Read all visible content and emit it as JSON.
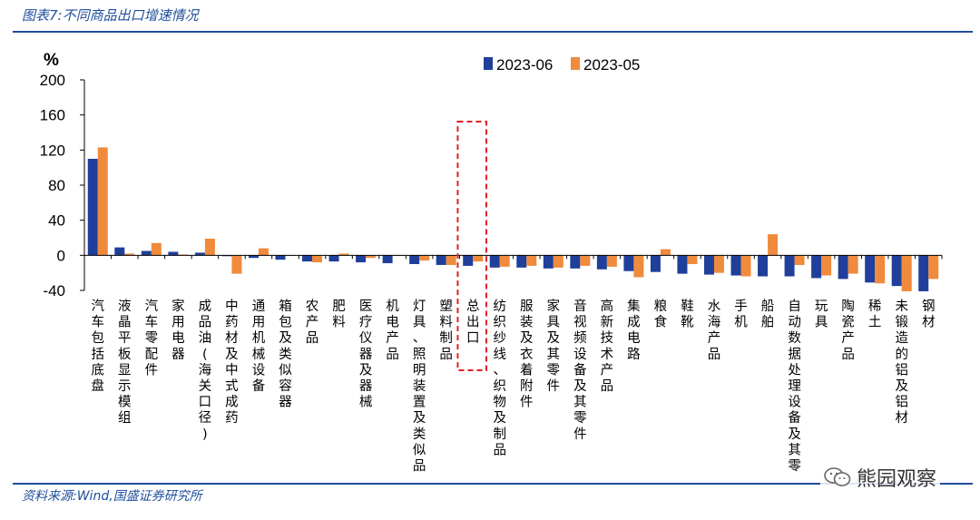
{
  "figure": {
    "title": "图表7:不同商品出口增速情况",
    "source": "资料来源:Wind,国盛证券研究所",
    "watermark": "熊园观察"
  },
  "colors": {
    "series_2023_06": "#1f3f9a",
    "series_2023_05": "#f08a3c",
    "rule": "#1f4e9c",
    "highlight": "#e02020"
  },
  "chart_data": {
    "type": "bar",
    "unit_label": "%",
    "ylim": [
      -40,
      200
    ],
    "yticks": [
      -40,
      0,
      40,
      80,
      120,
      160,
      200
    ],
    "grid": false,
    "legend_position": "top",
    "categories": [
      "汽车包括底盘",
      "液晶平板显示模组",
      "汽车零配件",
      "家用电器",
      "成品油(海关口径)",
      "中药材及中式成药",
      "通用机械设备",
      "箱包及类似容器",
      "农产品",
      "肥料",
      "医疗仪器及器械",
      "机电产品",
      "灯具、照明装置及类似品",
      "塑料制品",
      "总出口",
      "纺织纱线、织物及制品",
      "服装及衣着附件",
      "家具及其零件",
      "音视频设备及其零件",
      "高新技术产品",
      "集成电路",
      "粮食",
      "鞋靴",
      "水海产品",
      "手机",
      "船舶",
      "自动数据处理设备及其零",
      "玩具",
      "陶瓷产品",
      "稀土",
      "未锻造的铝及铝材",
      "钢材"
    ],
    "highlight_category": "总出口",
    "series": [
      {
        "name": "2023-06",
        "values": [
          110,
          9,
          5,
          4,
          3,
          -1,
          -3,
          -5,
          -7,
          -7,
          -8,
          -9,
          -10,
          -11,
          -12,
          -14,
          -14,
          -15,
          -15,
          -16,
          -18,
          -19,
          -21,
          -22,
          -23,
          -24,
          -24,
          -26,
          -27,
          -31,
          -35,
          -41
        ]
      },
      {
        "name": "2023-05",
        "values": [
          123,
          2,
          14,
          1,
          19,
          -21,
          8,
          0,
          -8,
          2,
          -3,
          0,
          -6,
          -11,
          -7,
          -13,
          -12,
          -14,
          -12,
          -13,
          -25,
          7,
          -10,
          -20,
          -24,
          24,
          -11,
          -23,
          -21,
          -32,
          -41,
          -27
        ]
      }
    ]
  }
}
